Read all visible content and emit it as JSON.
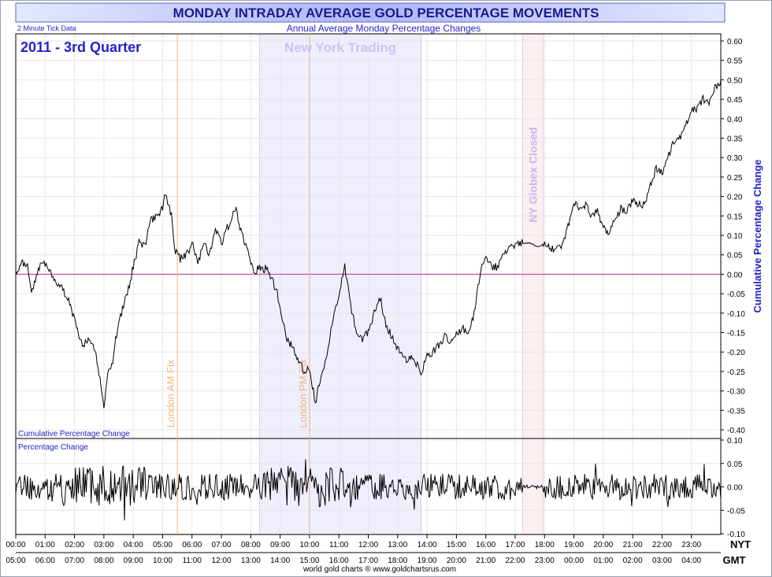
{
  "title": "MONDAY INTRADAY AVERAGE GOLD PERCENTAGE MOVEMENTS",
  "subtitle": "Annual Average Monday Percentage Changes",
  "tick_note": "2 Minute Tick Data",
  "period_label": "2011 - 3rd Quarter",
  "main_panel_label": "Cumulative Percentage Change",
  "lower_panel_label": "Percentage Change",
  "right_axis_label": "Cumulative Percentage Change",
  "credit": "world gold charts ® www.goldchartsrus.com",
  "timezone_top": "NYT",
  "timezone_bottom": "GMT",
  "colors": {
    "title_bg": "#b7bdf7",
    "title_text": "#1a1a8c",
    "blue_text": "#2323c8",
    "ny_band": "#efeefd",
    "globex_band": "#fcefef",
    "fix_line": "#f3b37d",
    "zero_line": "#c0309a",
    "series": "#000000"
  },
  "chart_data": [
    {
      "type": "line",
      "name": "cumulative",
      "ylim": [
        -0.42,
        0.62
      ],
      "y_ticks": [
        "0.60",
        "0.55",
        "0.50",
        "0.45",
        "0.40",
        "0.35",
        "0.30",
        "0.25",
        "0.20",
        "0.15",
        "0.10",
        "0.05",
        "0.00",
        "-0.05",
        "-0.10",
        "-0.15",
        "-0.20",
        "-0.25",
        "-0.30",
        "-0.35",
        "-0.40"
      ],
      "xlim": [
        0,
        24
      ],
      "x_ticks_nyt": [
        "00:00",
        "01:00",
        "02:00",
        "03:00",
        "04:00",
        "05:00",
        "06:00",
        "07:00",
        "08:00",
        "09:00",
        "10:00",
        "11:00",
        "12:00",
        "13:00",
        "14:00",
        "15:00",
        "16:00",
        "17:00",
        "18:00",
        "19:00",
        "20:00",
        "21:00",
        "22:00",
        "23:00"
      ],
      "x_ticks_gmt": [
        "05:00",
        "06:00",
        "07:00",
        "08:00",
        "09:00",
        "10:00",
        "11:00",
        "12:00",
        "13:00",
        "14:00",
        "15:00",
        "16:00",
        "17:00",
        "18:00",
        "19:00",
        "20:00",
        "21:00",
        "22:00",
        "23:00",
        "00:00",
        "01:00",
        "02:00",
        "03:00",
        "04:00"
      ],
      "x": [
        0,
        0.2,
        0.4,
        0.55,
        0.8,
        1.0,
        1.2,
        1.5,
        1.8,
        2.0,
        2.15,
        2.3,
        2.5,
        2.7,
        2.9,
        3.0,
        3.1,
        3.3,
        3.5,
        3.8,
        4.0,
        4.2,
        4.4,
        4.6,
        4.8,
        5.0,
        5.1,
        5.3,
        5.4,
        5.6,
        5.8,
        6.0,
        6.2,
        6.4,
        6.6,
        6.8,
        7.0,
        7.2,
        7.5,
        7.7,
        7.9,
        8.1,
        8.3,
        8.6,
        8.9,
        9.2,
        9.5,
        9.8,
        10.0,
        10.2,
        10.4,
        10.6,
        10.8,
        11.0,
        11.2,
        11.4,
        11.6,
        11.8,
        12.0,
        12.2,
        12.4,
        12.6,
        12.8,
        13.0,
        13.2,
        13.5,
        13.8,
        14.0,
        14.2,
        14.4,
        14.6,
        14.8,
        15.0,
        15.2,
        15.4,
        15.6,
        15.8,
        16.0,
        16.2,
        16.4,
        16.6,
        17.0,
        17.2,
        17.5,
        17.8,
        18.0,
        18.2,
        18.4,
        18.6,
        18.8,
        19.0,
        19.2,
        19.4,
        19.6,
        19.8,
        20.0,
        20.2,
        20.4,
        20.6,
        20.8,
        21.0,
        21.2,
        21.4,
        21.6,
        21.8,
        22.0,
        22.2,
        22.4,
        22.6,
        22.8,
        23.0,
        23.2,
        23.4,
        23.6,
        23.8,
        24.0
      ],
      "y": [
        0.0,
        0.03,
        0.02,
        -0.05,
        0.02,
        0.03,
        0.0,
        -0.03,
        -0.06,
        -0.12,
        -0.16,
        -0.18,
        -0.17,
        -0.2,
        -0.28,
        -0.34,
        -0.27,
        -0.22,
        -0.12,
        -0.05,
        0.02,
        0.08,
        0.07,
        0.14,
        0.15,
        0.17,
        0.21,
        0.15,
        0.06,
        0.04,
        0.05,
        0.08,
        0.03,
        0.08,
        0.05,
        0.12,
        0.08,
        0.12,
        0.17,
        0.1,
        0.06,
        0.0,
        0.02,
        0.01,
        -0.05,
        -0.16,
        -0.2,
        -0.25,
        -0.24,
        -0.33,
        -0.26,
        -0.2,
        -0.12,
        -0.05,
        0.02,
        -0.08,
        -0.15,
        -0.17,
        -0.15,
        -0.1,
        -0.06,
        -0.13,
        -0.16,
        -0.19,
        -0.22,
        -0.21,
        -0.25,
        -0.21,
        -0.2,
        -0.18,
        -0.16,
        -0.17,
        -0.15,
        -0.14,
        -0.15,
        -0.1,
        0.0,
        0.05,
        0.02,
        0.02,
        0.06,
        0.07,
        0.08,
        0.08,
        0.07,
        0.08,
        0.07,
        0.06,
        0.08,
        0.12,
        0.18,
        0.17,
        0.18,
        0.15,
        0.16,
        0.12,
        0.1,
        0.14,
        0.17,
        0.16,
        0.19,
        0.18,
        0.18,
        0.23,
        0.27,
        0.26,
        0.3,
        0.34,
        0.35,
        0.38,
        0.42,
        0.43,
        0.45,
        0.44,
        0.48,
        0.5
      ]
    },
    {
      "type": "line",
      "name": "percentage_change",
      "ylim": [
        -0.1,
        0.1
      ],
      "y_ticks": [
        "0.10",
        "0.05",
        "0.00",
        "-0.05",
        "-0.10"
      ]
    }
  ],
  "annotations": {
    "ny_trading": {
      "label": "New York Trading",
      "start": 8.3,
      "end": 13.8
    },
    "globex_closed": {
      "label": "NY Globex Closed",
      "start": 17.25,
      "end": 17.95
    },
    "london_am_fix": {
      "label": "London AM Fix",
      "at": 5.5
    },
    "london_pm_fix": {
      "label": "London PM Fix",
      "at": 10.0
    }
  }
}
